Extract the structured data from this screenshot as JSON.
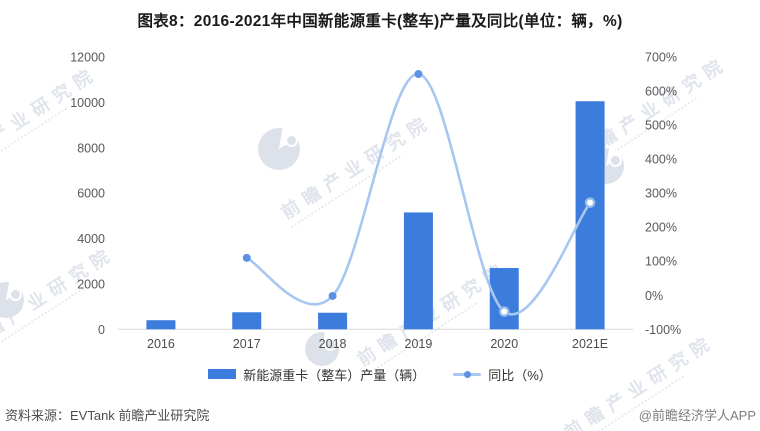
{
  "chart_data": {
    "type": "bar+line combo",
    "title": "图表8：2016-2021年中国新能源重卡(整车)产量及同比(单位：辆，%)",
    "xlabel": "",
    "ylabel_left": "产量（辆）",
    "ylabel_right": "同比（%）",
    "grid": false,
    "legend_position": "bottom-center",
    "categories": [
      "2016",
      "2017",
      "2018",
      "2019",
      "2020",
      "2021E"
    ],
    "series": [
      {
        "name": "新能源重卡（整车）产量（辆）",
        "type": "bar",
        "axis": "left",
        "values": [
          400,
          750,
          730,
          5150,
          2700,
          10050
        ]
      },
      {
        "name": "同比（%）",
        "type": "line",
        "axis": "right",
        "values": [
          null,
          110,
          -2,
          650,
          -48,
          272
        ],
        "markers": [
          "none",
          "solid",
          "solid",
          "solid",
          "hollow",
          "hollow"
        ]
      }
    ],
    "left_axis": {
      "min": 0,
      "max": 12000,
      "step": 2000,
      "tick_values": [
        0,
        2000,
        4000,
        6000,
        8000,
        10000,
        12000
      ],
      "tick_labels": [
        "0",
        "2000",
        "4000",
        "6000",
        "8000",
        "10000",
        "12000"
      ]
    },
    "right_axis": {
      "min": -100,
      "max": 700,
      "step": 100,
      "tick_values": [
        -100,
        0,
        100,
        200,
        300,
        400,
        500,
        600,
        700
      ],
      "tick_labels": [
        "-100%",
        "0%",
        "100%",
        "200%",
        "300%",
        "400%",
        "500%",
        "600%",
        "700%"
      ]
    }
  },
  "colors": {
    "bar": "#3B7CDC",
    "line": "#A8C7F0",
    "marker_solid": "#5B92E3",
    "marker_hollow_ring": "#94BBEE",
    "axis_line": "#D8D8D8",
    "tick_text": "#595959",
    "category_text": "#4d4d4d"
  },
  "footer": {
    "source": "资料来源：EVTank 前瞻产业研究院",
    "credit": "@前瞻经济学人APP"
  },
  "watermark": {
    "text": "前瞻产业研究院"
  }
}
